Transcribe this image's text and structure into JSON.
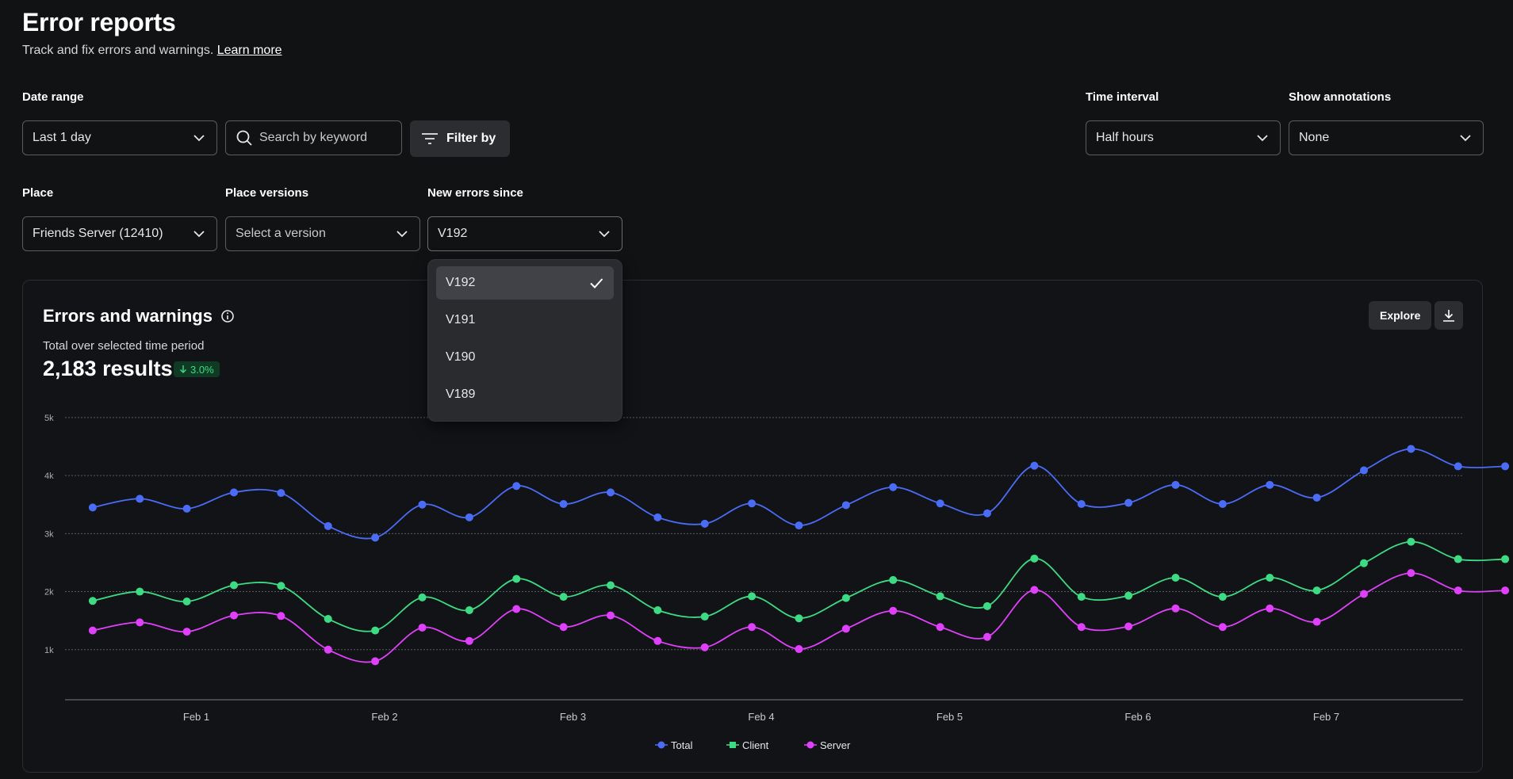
{
  "page": {
    "title": "Error reports",
    "subtitle": "Track and fix errors and warnings.",
    "learn_more": "Learn more"
  },
  "filters": {
    "date_range": {
      "label": "Date range",
      "value": "Last 1 day"
    },
    "search": {
      "placeholder": "Search by keyword"
    },
    "filter_by": "Filter by",
    "time_interval": {
      "label": "Time interval",
      "value": "Half hours"
    },
    "show_annotations": {
      "label": "Show annotations",
      "value": "None"
    },
    "place": {
      "label": "Place",
      "value": "Friends Server (12410)"
    },
    "place_versions": {
      "label": "Place versions",
      "value": "Select a version"
    },
    "new_errors_since": {
      "label": "New errors since",
      "value": "V192"
    }
  },
  "dropdown": {
    "options": [
      "V192",
      "V191",
      "V190",
      "V189"
    ],
    "selected": "V192"
  },
  "card": {
    "title": "Errors and warnings",
    "subtitle": "Total over selected time period",
    "results": "2,183 results",
    "change": "3.0%",
    "change_direction": "down",
    "explore": "Explore"
  },
  "chart_data": {
    "type": "line",
    "title": "Errors and warnings",
    "y_ticks": [
      "1k",
      "2k",
      "3k",
      "4k",
      "5k"
    ],
    "ylim": [
      0,
      5000
    ],
    "x_tick_labels": [
      "Feb 1",
      "Feb 2",
      "Feb 3",
      "Feb 4",
      "Feb 5",
      "Feb 6",
      "Feb 7"
    ],
    "grid": true,
    "legend_position": "bottom-center",
    "colors": {
      "Total": "#4a6cf7",
      "Client": "#3ddc84",
      "Server": "#e040fb"
    },
    "x": [
      0.45,
      0.7,
      0.95,
      1.2,
      1.45,
      1.7,
      1.95,
      2.2,
      2.45,
      2.7,
      2.95,
      3.2,
      3.45,
      3.7,
      3.95,
      4.2,
      4.45,
      4.7,
      4.95,
      5.2,
      5.45,
      5.7,
      5.95,
      6.2,
      6.45,
      6.7,
      6.95,
      7.2,
      7.45,
      7.7,
      7.95
    ],
    "series": [
      {
        "name": "Total",
        "values": [
          3450,
          3600,
          3430,
          3710,
          3700,
          3130,
          2930,
          3500,
          3280,
          3820,
          3510,
          3710,
          3280,
          3170,
          3520,
          3140,
          3490,
          3800,
          3520,
          3350,
          4170,
          3510,
          3530,
          3840,
          3510,
          3840,
          3620,
          4090,
          4460,
          4160,
          4160
        ]
      },
      {
        "name": "Client",
        "values": [
          1840,
          2000,
          1830,
          2110,
          2100,
          1530,
          1330,
          1900,
          1680,
          2220,
          1910,
          2110,
          1680,
          1570,
          1920,
          1540,
          1890,
          2200,
          1920,
          1750,
          2570,
          1910,
          1930,
          2240,
          1910,
          2240,
          2020,
          2490,
          2860,
          2560,
          2560
        ]
      },
      {
        "name": "Server",
        "values": [
          1330,
          1470,
          1310,
          1590,
          1580,
          1000,
          800,
          1380,
          1150,
          1700,
          1390,
          1590,
          1150,
          1040,
          1390,
          1010,
          1360,
          1670,
          1390,
          1220,
          2030,
          1390,
          1400,
          1710,
          1390,
          1710,
          1480,
          1960,
          2320,
          2020,
          2020
        ]
      }
    ]
  }
}
